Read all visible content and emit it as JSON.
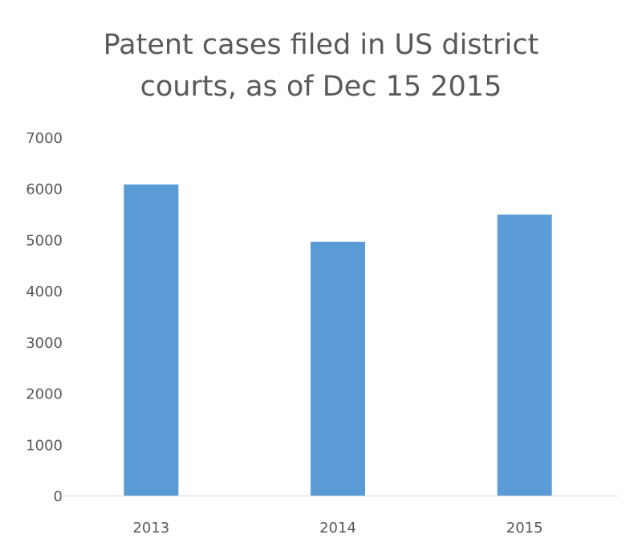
{
  "chart_data": {
    "type": "bar",
    "title_lines": [
      "Patent cases filed in US district",
      "courts, as of Dec 15 2015"
    ],
    "categories": [
      "2013",
      "2014",
      "2015"
    ],
    "values": [
      6080,
      4960,
      5490
    ],
    "xlabel": "",
    "ylabel": "",
    "ylim": [
      0,
      7000
    ],
    "yticks": [
      "0",
      "1000",
      "2000",
      "3000",
      "4000",
      "5000",
      "6000",
      "7000"
    ],
    "grid": false,
    "bar_color": "#5B9BD5"
  }
}
